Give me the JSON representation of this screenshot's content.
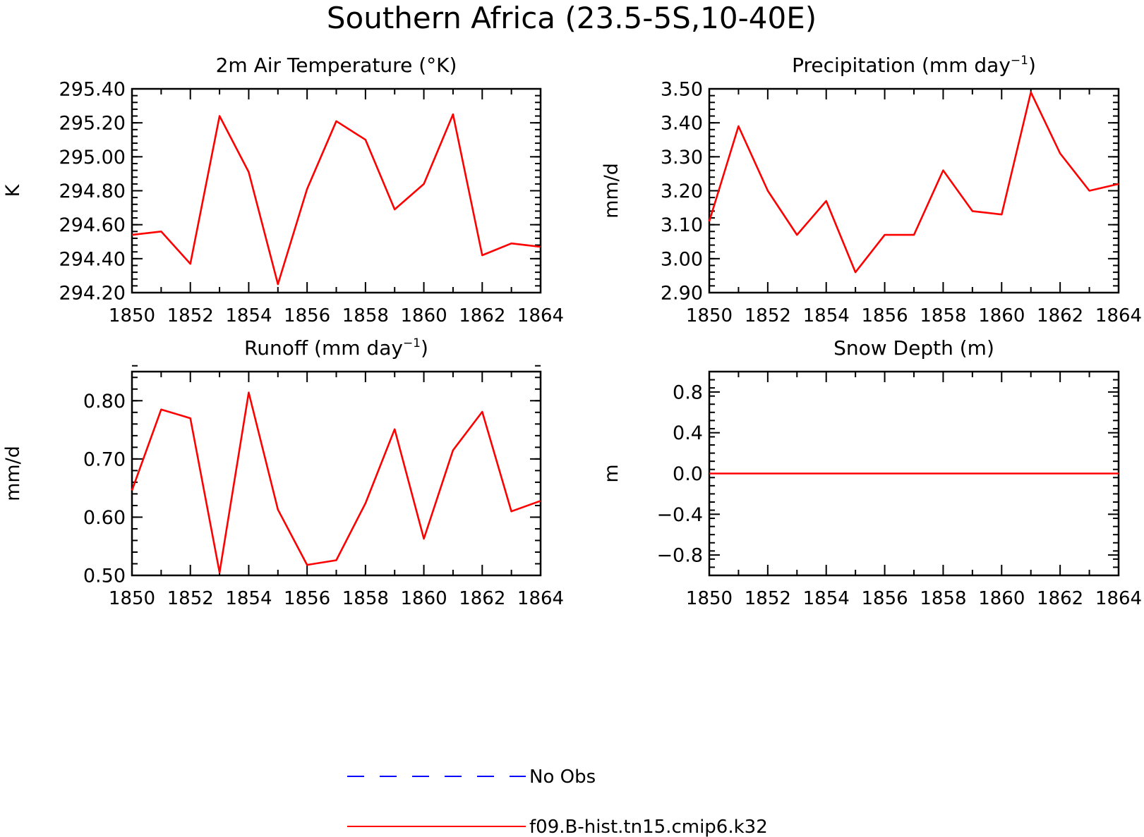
{
  "title": "Southern Africa (23.5-5S,10-40E)",
  "colors": {
    "model": "#ff0000",
    "obs": "#0000ff",
    "axis": "#000000"
  },
  "legend": [
    {
      "label": "No Obs",
      "style": "dashed",
      "color": "#0000ff"
    },
    {
      "label": "f09.B-hist.tn15.cmip6.k32",
      "style": "solid",
      "color": "#ff0000"
    }
  ],
  "chart_data": [
    {
      "type": "line",
      "title_main": "2m Air Temperature (°K)",
      "title_sup": "",
      "title_tail": "",
      "ylabel": "K",
      "xlim": [
        1850,
        1864
      ],
      "xticks": [
        1850,
        1852,
        1854,
        1856,
        1858,
        1860,
        1862,
        1864
      ],
      "ylim": [
        294.2,
        295.4
      ],
      "yticks": [
        294.2,
        294.4,
        294.6,
        294.8,
        295.0,
        295.2,
        295.4
      ],
      "ytick_labels": [
        "294.20",
        "294.40",
        "294.60",
        "294.80",
        "295.00",
        "295.20",
        "295.40"
      ],
      "yminor": 0.04,
      "series": [
        {
          "name": "f09.B-hist.tn15.cmip6.k32",
          "x": [
            1850,
            1851,
            1852,
            1853,
            1854,
            1855,
            1856,
            1857,
            1858,
            1859,
            1860,
            1861,
            1862,
            1863,
            1864
          ],
          "y": [
            294.54,
            294.56,
            294.37,
            295.24,
            294.91,
            294.25,
            294.81,
            295.21,
            295.1,
            294.69,
            294.84,
            295.25,
            294.42,
            294.49,
            294.47
          ]
        }
      ]
    },
    {
      "type": "line",
      "title_main": "Precipitation (mm day",
      "title_sup": "-1",
      "title_tail": ")",
      "ylabel": "mm/d",
      "xlim": [
        1850,
        1864
      ],
      "xticks": [
        1850,
        1852,
        1854,
        1856,
        1858,
        1860,
        1862,
        1864
      ],
      "ylim": [
        2.9,
        3.5
      ],
      "yticks": [
        2.9,
        3.0,
        3.1,
        3.2,
        3.3,
        3.4,
        3.5
      ],
      "ytick_labels": [
        "2.90",
        "3.00",
        "3.10",
        "3.20",
        "3.30",
        "3.40",
        "3.50"
      ],
      "yminor": 0.02,
      "series": [
        {
          "name": "f09.B-hist.tn15.cmip6.k32",
          "x": [
            1850,
            1851,
            1852,
            1853,
            1854,
            1855,
            1856,
            1857,
            1858,
            1859,
            1860,
            1861,
            1862,
            1863,
            1864
          ],
          "y": [
            3.11,
            3.39,
            3.2,
            3.07,
            3.17,
            2.96,
            3.07,
            3.07,
            3.26,
            3.14,
            3.13,
            3.49,
            3.31,
            3.2,
            3.22
          ]
        }
      ]
    },
    {
      "type": "line",
      "title_main": "Runoff (mm day",
      "title_sup": "-1",
      "title_tail": ")",
      "ylabel": "mm/d",
      "xlim": [
        1850,
        1864
      ],
      "xticks": [
        1850,
        1852,
        1854,
        1856,
        1858,
        1860,
        1862,
        1864
      ],
      "ylim": [
        0.5,
        0.85
      ],
      "yticks": [
        0.5,
        0.6,
        0.7,
        0.8
      ],
      "ytick_labels": [
        "0.50",
        "0.60",
        "0.70",
        "0.80"
      ],
      "yminor": 0.02,
      "series": [
        {
          "name": "f09.B-hist.tn15.cmip6.k32",
          "x": [
            1850,
            1851,
            1852,
            1853,
            1854,
            1855,
            1856,
            1857,
            1858,
            1859,
            1860,
            1861,
            1862,
            1863,
            1864
          ],
          "y": [
            0.646,
            0.785,
            0.77,
            0.505,
            0.814,
            0.613,
            0.518,
            0.526,
            0.624,
            0.751,
            0.563,
            0.715,
            0.781,
            0.61,
            0.628
          ]
        }
      ]
    },
    {
      "type": "line",
      "title_main": "Snow Depth (m)",
      "title_sup": "",
      "title_tail": "",
      "ylabel": "m",
      "xlim": [
        1850,
        1864
      ],
      "xticks": [
        1850,
        1852,
        1854,
        1856,
        1858,
        1860,
        1862,
        1864
      ],
      "ylim": [
        -1.0,
        1.0
      ],
      "yticks": [
        -0.8,
        -0.4,
        0.0,
        0.4,
        0.8
      ],
      "ytick_labels": [
        "-0.8",
        "-0.4",
        "0.0",
        "0.4",
        "0.8"
      ],
      "yminor": 0.08,
      "series": [
        {
          "name": "f09.B-hist.tn15.cmip6.k32",
          "x": [
            1850,
            1864
          ],
          "y": [
            0.0,
            0.0
          ]
        }
      ]
    }
  ]
}
